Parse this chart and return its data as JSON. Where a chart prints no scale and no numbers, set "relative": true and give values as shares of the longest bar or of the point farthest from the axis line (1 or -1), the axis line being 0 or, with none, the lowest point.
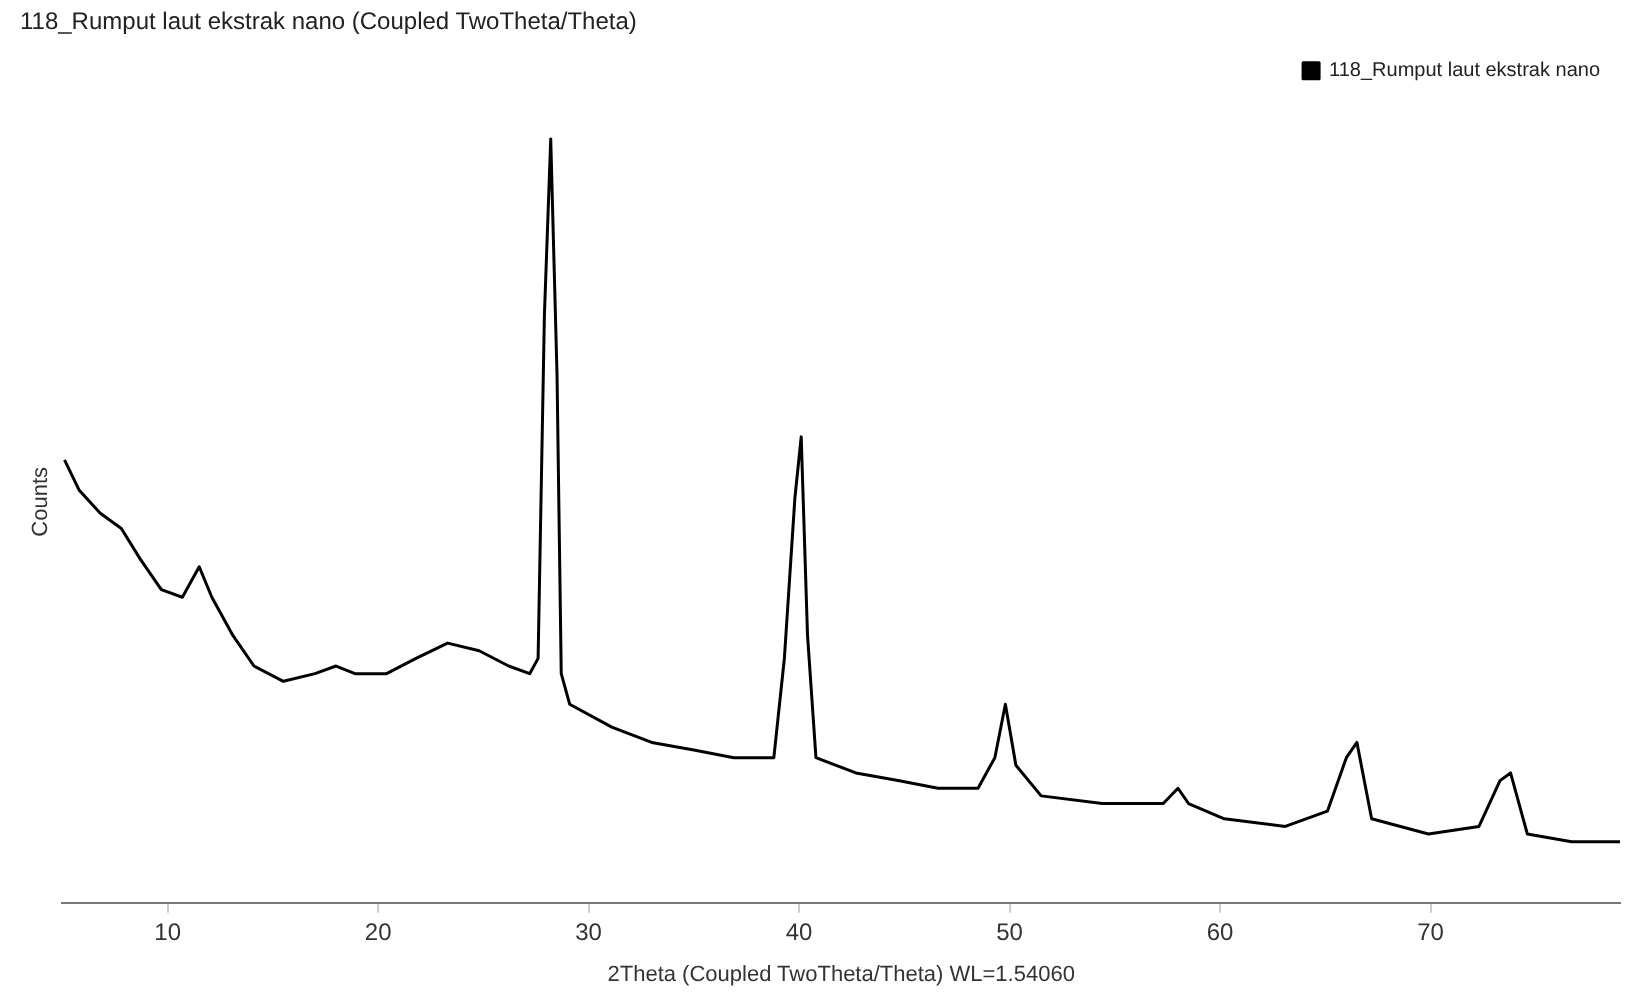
{
  "chart_data": {
    "type": "line",
    "title": "118_Rumput laut ekstrak nano (Coupled TwoTheta/Theta)",
    "xlabel": "2Theta (Coupled TwoTheta/Theta) WL=1.54060",
    "ylabel": "Counts",
    "relative": true,
    "xlim": [
      5,
      79
    ],
    "xticks": [
      10,
      20,
      30,
      40,
      50,
      60,
      70
    ],
    "legend": "top right",
    "grid": false,
    "marker": "none",
    "series": [
      {
        "name": "118_Rumput laut ekstrak nano",
        "color": "#000000",
        "x": [
          5.1,
          5.8,
          6.8,
          7.8,
          8.7,
          9.7,
          10.7,
          11.5,
          12.1,
          13.1,
          14.1,
          15.5,
          17.0,
          18.0,
          18.9,
          20.4,
          21.8,
          23.3,
          24.8,
          26.2,
          27.2,
          27.6,
          27.9,
          28.2,
          28.5,
          28.7,
          29.1,
          31.1,
          33.0,
          35.0,
          36.9,
          38.8,
          39.3,
          39.8,
          40.1,
          40.4,
          40.8,
          42.7,
          44.7,
          46.6,
          48.5,
          49.3,
          49.8,
          50.3,
          51.5,
          54.4,
          57.3,
          58.0,
          58.5,
          60.2,
          63.1,
          65.1,
          66.0,
          66.5,
          67.2,
          69.9,
          72.3,
          73.3,
          73.8,
          74.6,
          76.7,
          79.0
        ],
        "values": [
          0.58,
          0.54,
          0.51,
          0.49,
          0.45,
          0.41,
          0.4,
          0.44,
          0.4,
          0.35,
          0.31,
          0.29,
          0.3,
          0.31,
          0.3,
          0.3,
          0.32,
          0.34,
          0.33,
          0.31,
          0.3,
          0.32,
          0.77,
          1,
          0.69,
          0.3,
          0.26,
          0.23,
          0.21,
          0.2,
          0.19,
          0.19,
          0.32,
          0.53,
          0.61,
          0.35,
          0.19,
          0.17,
          0.16,
          0.15,
          0.15,
          0.19,
          0.26,
          0.18,
          0.14,
          0.13,
          0.13,
          0.15,
          0.13,
          0.11,
          0.1,
          0.12,
          0.19,
          0.21,
          0.11,
          0.09,
          0.1,
          0.16,
          0.17,
          0.09,
          0.08,
          0.08
        ]
      }
    ]
  }
}
